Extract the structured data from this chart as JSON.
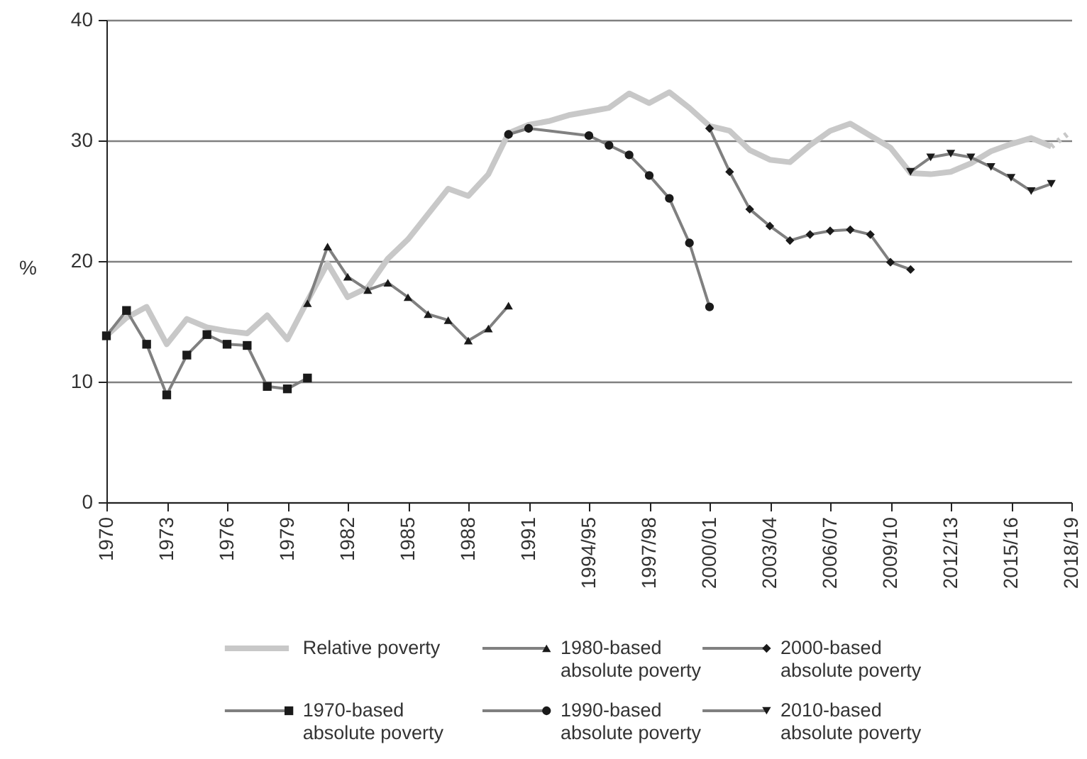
{
  "chart_data": {
    "type": "line",
    "ylabel": "%",
    "categories": [
      "1970",
      null,
      null,
      "1973",
      null,
      null,
      "1976",
      null,
      null,
      "1979",
      null,
      null,
      "1982",
      null,
      null,
      "1985",
      null,
      null,
      "1988",
      null,
      null,
      "1991",
      null,
      null,
      "1994/95",
      null,
      null,
      "1997/98",
      null,
      null,
      "2000/01",
      null,
      null,
      "2003/04",
      null,
      null,
      "2006/07",
      null,
      null,
      "2009/10",
      null,
      null,
      "2012/13",
      null,
      null,
      "2015/16",
      null,
      null,
      "2018/19"
    ],
    "ylim": [
      0,
      40
    ],
    "yticks": [
      0,
      10,
      20,
      30,
      40
    ],
    "grid": "y",
    "legend": "bottom",
    "series": [
      {
        "name": "Relative poverty",
        "color": "#c8c8c8",
        "marker": "none",
        "values": [
          13.8,
          15.3,
          16.2,
          13.1,
          15.2,
          14.5,
          14.2,
          14.0,
          15.5,
          13.5,
          16.7,
          19.8,
          17.0,
          17.8,
          20.2,
          21.8,
          23.9,
          26.0,
          25.4,
          27.2,
          30.6,
          31.3,
          31.6,
          32.1,
          32.4,
          32.7,
          33.9,
          33.1,
          34.0,
          32.7,
          31.2,
          30.8,
          29.2,
          28.4,
          28.2,
          29.6,
          30.8,
          31.4,
          30.4,
          29.4,
          27.3,
          27.2,
          27.4,
          28.1,
          29.1,
          29.7,
          30.2,
          29.5,
          null
        ]
      },
      {
        "name": "1970-based absolute poverty",
        "color": "#808080",
        "marker": "square",
        "values": [
          13.8,
          15.9,
          13.1,
          8.9,
          12.2,
          13.9,
          13.1,
          13.0,
          9.6,
          9.4,
          10.3,
          null,
          null,
          null,
          null,
          null,
          null,
          null,
          null,
          null,
          null,
          null,
          null,
          null,
          null,
          null,
          null,
          null,
          null,
          null,
          null,
          null,
          null,
          null,
          null,
          null,
          null,
          null,
          null,
          null,
          null,
          null,
          null,
          null,
          null,
          null,
          null,
          null,
          null
        ]
      },
      {
        "name": "1980-based absolute poverty",
        "color": "#808080",
        "marker": "triangle",
        "values": [
          null,
          null,
          null,
          null,
          null,
          null,
          null,
          null,
          null,
          null,
          16.5,
          21.2,
          18.7,
          17.6,
          18.2,
          17.0,
          15.6,
          15.1,
          13.4,
          14.4,
          16.3,
          null,
          null,
          null,
          null,
          null,
          null,
          null,
          null,
          null,
          null,
          null,
          null,
          null,
          null,
          null,
          null,
          null,
          null,
          null,
          null,
          null,
          null,
          null,
          null,
          null,
          null,
          null,
          null
        ]
      },
      {
        "name": "1990-based absolute poverty",
        "color": "#808080",
        "marker": "circle",
        "values": [
          null,
          null,
          null,
          null,
          null,
          null,
          null,
          null,
          null,
          null,
          null,
          null,
          null,
          null,
          null,
          null,
          null,
          null,
          null,
          null,
          30.5,
          31.0,
          null,
          null,
          30.4,
          29.6,
          28.8,
          27.1,
          25.2,
          21.5,
          16.2,
          null,
          null,
          null,
          null,
          null,
          null,
          null,
          null,
          null,
          null,
          null,
          null,
          null,
          null,
          null,
          null,
          null,
          null
        ]
      },
      {
        "name": "2000-based absolute poverty",
        "color": "#808080",
        "marker": "diamond",
        "values": [
          null,
          null,
          null,
          null,
          null,
          null,
          null,
          null,
          null,
          null,
          null,
          null,
          null,
          null,
          null,
          null,
          null,
          null,
          null,
          null,
          null,
          null,
          null,
          null,
          null,
          null,
          null,
          null,
          null,
          null,
          31.0,
          27.4,
          24.3,
          22.9,
          21.7,
          22.2,
          22.5,
          22.6,
          22.2,
          19.9,
          19.3,
          null,
          null,
          null,
          null,
          null,
          null,
          null,
          null
        ]
      },
      {
        "name": "2010-based absolute poverty",
        "color": "#808080",
        "marker": "triangle-down",
        "values": [
          null,
          null,
          null,
          null,
          null,
          null,
          null,
          null,
          null,
          null,
          null,
          null,
          null,
          null,
          null,
          null,
          null,
          null,
          null,
          null,
          null,
          null,
          null,
          null,
          null,
          null,
          null,
          null,
          null,
          null,
          null,
          null,
          null,
          null,
          null,
          null,
          null,
          null,
          null,
          null,
          27.4,
          28.6,
          28.9,
          28.6,
          27.8,
          26.9,
          25.8,
          26.4,
          null
        ]
      },
      {
        "color": "#c8c8c8",
        "marker": "none",
        "line_style": "dotted",
        "values": [
          null,
          null,
          null,
          null,
          null,
          null,
          null,
          null,
          null,
          null,
          null,
          null,
          null,
          null,
          null,
          null,
          null,
          null,
          null,
          null,
          null,
          null,
          null,
          null,
          null,
          null,
          null,
          null,
          null,
          null,
          null,
          null,
          null,
          null,
          null,
          null,
          null,
          null,
          null,
          null,
          null,
          null,
          null,
          null,
          null,
          null,
          null,
          29.5,
          30.8
        ]
      }
    ]
  }
}
